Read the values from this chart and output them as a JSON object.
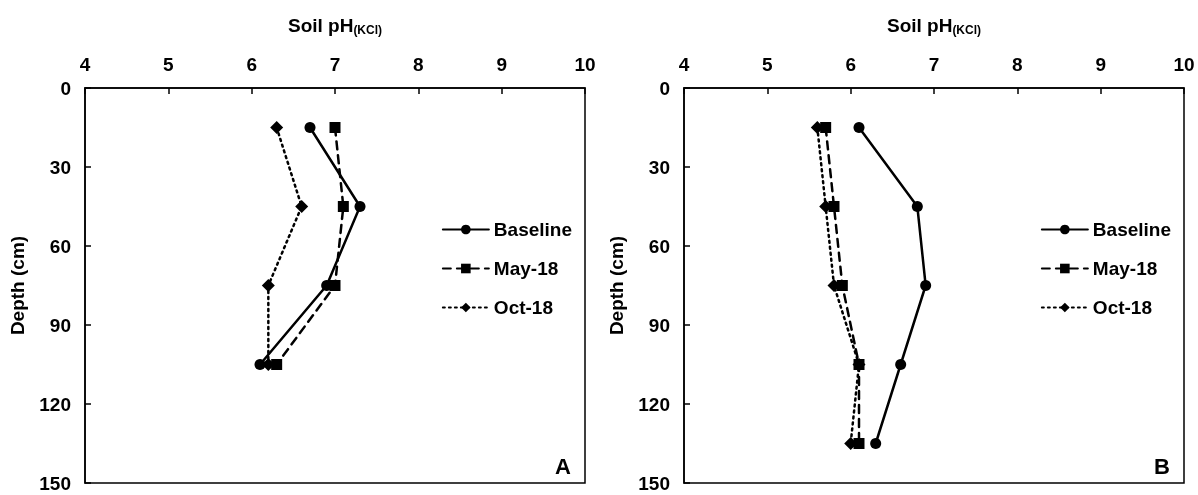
{
  "chart_data": [
    {
      "type": "line",
      "xlabel": "Soil pH$_{(KCl)}$",
      "ylabel": "Depth (cm)",
      "xlim": [
        4,
        10
      ],
      "xticks": [
        4,
        5,
        6,
        7,
        8,
        9,
        10
      ],
      "ylim": [
        150,
        0
      ],
      "yticks": [
        0,
        30,
        60,
        90,
        120,
        150
      ],
      "grid": false,
      "legend": "right",
      "annotations": [
        "A"
      ],
      "series": [
        {
          "name": "Baseline",
          "color": "#000000",
          "marker": "circle",
          "line_style": "solid",
          "x": [
            6.7,
            7.3,
            6.9,
            6.1
          ],
          "values": [
            15,
            45,
            75,
            105
          ]
        },
        {
          "name": "May-18",
          "color": "#000000",
          "marker": "square",
          "line_style": "dashed",
          "x": [
            7.0,
            7.1,
            7.0,
            6.3
          ],
          "values": [
            15,
            45,
            75,
            105
          ]
        },
        {
          "name": "Oct-18",
          "color": "#000000",
          "marker": "diamond",
          "line_style": "dotted",
          "x": [
            6.3,
            6.6,
            6.2,
            6.2
          ],
          "values": [
            15,
            45,
            75,
            105
          ]
        }
      ]
    },
    {
      "type": "line",
      "xlabel": "Soil pH$_{(KCl)}$",
      "ylabel": "Depth (cm)",
      "xlim": [
        4,
        10
      ],
      "xticks": [
        4,
        5,
        6,
        7,
        8,
        9,
        10
      ],
      "ylim": [
        150,
        0
      ],
      "yticks": [
        0,
        30,
        60,
        90,
        120,
        150
      ],
      "grid": false,
      "legend": "right",
      "annotations": [
        "B"
      ],
      "series": [
        {
          "name": "Baseline",
          "color": "#000000",
          "marker": "circle",
          "line_style": "solid",
          "x": [
            6.1,
            6.8,
            6.9,
            6.6,
            6.3
          ],
          "values": [
            15,
            45,
            75,
            105,
            135
          ]
        },
        {
          "name": "May-18",
          "color": "#000000",
          "marker": "square",
          "line_style": "dashed",
          "x": [
            5.7,
            5.8,
            5.9,
            6.1,
            6.1
          ],
          "values": [
            15,
            45,
            75,
            105,
            135
          ]
        },
        {
          "name": "Oct-18",
          "color": "#000000",
          "marker": "diamond",
          "line_style": "dotted",
          "x": [
            5.6,
            5.7,
            5.8,
            6.1,
            6.0
          ],
          "values": [
            15,
            45,
            75,
            105,
            135
          ]
        }
      ]
    }
  ]
}
